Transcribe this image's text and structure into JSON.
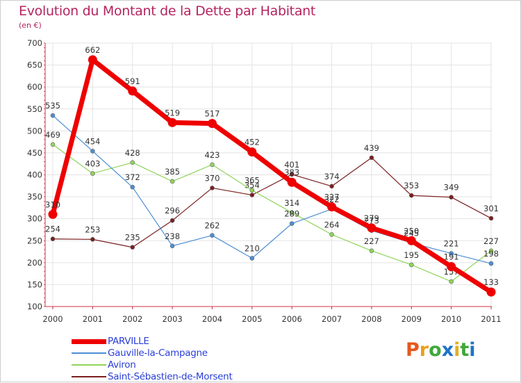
{
  "title": "Evolution du Montant de la Dette par Habitant",
  "subtitle": "(en €)",
  "brand": {
    "letters": [
      "P",
      "r",
      "o",
      "x",
      "i",
      "t",
      "i"
    ],
    "colors": [
      "#e8571a",
      "#e8a01a",
      "#3fa83a",
      "#1e73c9",
      "#e0b020",
      "#3fa83a",
      "#1e73c9"
    ]
  },
  "chart_data": {
    "type": "line",
    "x": [
      "2000",
      "2001",
      "2002",
      "2003",
      "2004",
      "2005",
      "2006",
      "2007",
      "2008",
      "2009",
      "2010",
      "2011"
    ],
    "ylim": [
      100,
      700
    ],
    "yticks": [
      "700",
      "650",
      "600",
      "550",
      "500",
      "450",
      "400",
      "350",
      "300",
      "250",
      "200",
      "150",
      "100"
    ],
    "grid": true,
    "legend_position": "bottom-left",
    "series": [
      {
        "name": "Saint-Sébastien-de-Morsent",
        "color": "#7a1f1f",
        "width": 1.2,
        "values": [
          254,
          253,
          235,
          296,
          370,
          354,
          401,
          374,
          439,
          353,
          349,
          301
        ],
        "labels": [
          "254",
          "253",
          "235",
          "296",
          "370",
          "354",
          "401",
          "374",
          "439",
          "353",
          "349",
          "301"
        ]
      },
      {
        "name": "Aviron",
        "color": "#8fd45a",
        "width": 1.2,
        "values": [
          469,
          403,
          428,
          385,
          423,
          365,
          314,
          264,
          227,
          195,
          157,
          227
        ],
        "labels": [
          "469",
          "403",
          "428",
          "385",
          "423",
          "365",
          "314",
          "264",
          "227",
          "195",
          "157",
          "227"
        ]
      },
      {
        "name": "Gauville-la-Campagne",
        "color": "#4d8ed4",
        "width": 1.2,
        "values": [
          535,
          454,
          372,
          238,
          262,
          210,
          289,
          322,
          273,
          245,
          221,
          198
        ],
        "labels": [
          "535",
          "454",
          "372",
          "238",
          "262",
          "210",
          "289",
          "322",
          "273",
          "245",
          "221",
          "198"
        ]
      },
      {
        "name": "PARVILLE",
        "color": "#ee0000",
        "width": 7,
        "values": [
          310,
          662,
          591,
          519,
          517,
          452,
          383,
          327,
          279,
          250,
          191,
          133
        ],
        "labels": [
          "310",
          "662",
          "591",
          "519",
          "517",
          "452",
          "383",
          "327",
          "279",
          "250",
          "191",
          "133"
        ]
      }
    ],
    "legend": [
      "PARVILLE",
      "Gauville-la-Campagne",
      "Aviron",
      "Saint-Sébastien-de-Morsent"
    ]
  }
}
